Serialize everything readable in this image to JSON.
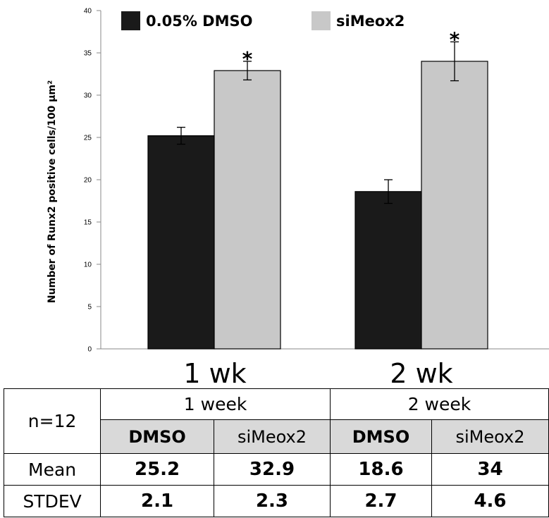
{
  "chart_data": {
    "type": "bar",
    "categories": [
      "1 wk",
      "2 wk"
    ],
    "series": [
      {
        "name": "0.05% DMSO",
        "color": "#1a1a1a",
        "values": [
          25.2,
          18.6
        ],
        "error": [
          1.0,
          1.4
        ]
      },
      {
        "name": "siMeox2",
        "color": "#c8c8c8",
        "values": [
          32.9,
          34.0
        ],
        "error": [
          1.1,
          2.3
        ]
      }
    ],
    "ylabel": "Number of Runx2 positive cells/100 μm²",
    "ylim": [
      0,
      40
    ],
    "yticks": [
      0,
      5,
      10,
      15,
      20,
      25,
      30,
      35,
      40
    ],
    "grid": false,
    "legend_position": "top",
    "significance_marker": "*",
    "significant": [
      [
        false,
        true
      ],
      [
        false,
        true
      ]
    ]
  },
  "table": {
    "corner": "n=12",
    "groups": [
      "1 week",
      "2 week"
    ],
    "subheaders": [
      "DMSO",
      "siMeox2",
      "DMSO",
      "siMeox2"
    ],
    "rows": [
      {
        "label": "Mean",
        "values": [
          "25.2",
          "32.9",
          "18.6",
          "34"
        ]
      },
      {
        "label": "STDEV",
        "values": [
          "2.1",
          "2.3",
          "2.7",
          "4.6"
        ]
      }
    ]
  }
}
